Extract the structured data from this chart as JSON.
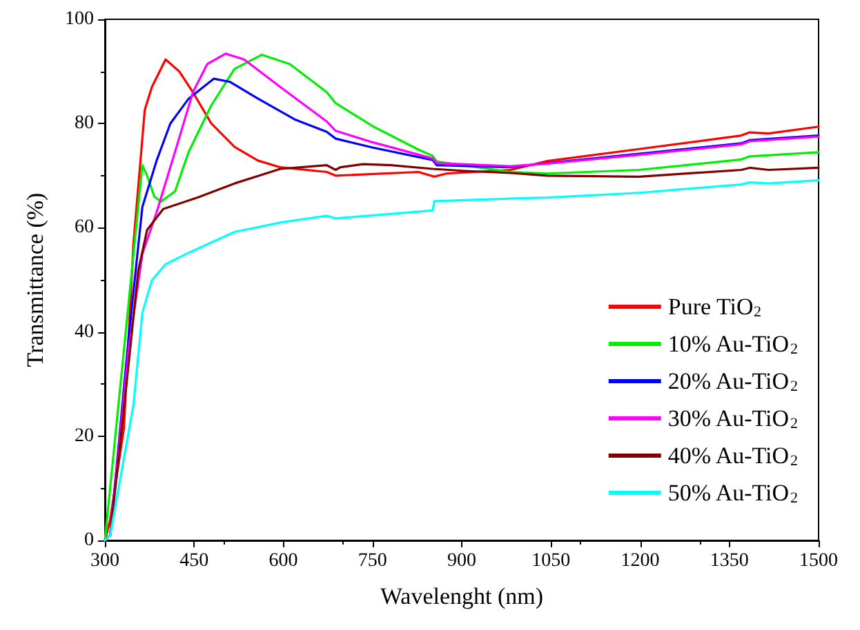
{
  "chart_data": {
    "type": "line",
    "xlabel": "Wavelenght (nm)",
    "ylabel": "Transmittance (%)",
    "xlim": [
      300,
      1500
    ],
    "xticks": [
      300,
      450,
      600,
      750,
      900,
      1050,
      1200,
      1350,
      1500
    ],
    "ylim": [
      0,
      100
    ],
    "yticks": [
      0,
      20,
      40,
      60,
      80,
      100
    ],
    "grid": false,
    "legend": "bottom right",
    "marker": "none",
    "line_style": "solid",
    "series": [
      {
        "name": "Pure TiO$_{2}$",
        "color": "#ff0000",
        "x": [
          300,
          309,
          332,
          348,
          367,
          379,
          402,
          425,
          448,
          479,
          518,
          557,
          595,
          673,
          688,
          827,
          854,
          874,
          982,
          1044,
          1198,
          1370,
          1384,
          1416,
          1500
        ],
        "values": [
          0,
          4,
          21.6,
          57,
          82.6,
          87,
          92.3,
          90,
          86,
          80,
          75.5,
          72.9,
          71.6,
          70.7,
          70,
          70.7,
          69.8,
          70.4,
          71.1,
          72.8,
          75.1,
          77.7,
          78.3,
          78.1,
          79.4
        ]
      },
      {
        "name": "10% Au-TiO$_{2}$",
        "color": "#00ee00",
        "x": [
          300,
          356,
          363,
          371,
          383,
          394,
          418,
          441,
          479,
          518,
          564,
          611,
          673,
          688,
          750,
          827,
          851,
          858,
          982,
          1044,
          1198,
          1370,
          1384,
          1500
        ],
        "values": [
          0,
          64,
          72,
          70,
          66,
          65,
          67,
          74.6,
          83.5,
          90.5,
          93.2,
          91.4,
          86,
          83.9,
          79.5,
          75,
          73.8,
          72.7,
          70.7,
          70.4,
          71.1,
          73.1,
          73.7,
          74.5
        ]
      },
      {
        "name": "20% Au-TiO$_{2}$",
        "color": "#0000ff",
        "x": [
          300,
          309,
          340,
          363,
          387,
          410,
          441,
          483,
          510,
          557,
          619,
          673,
          688,
          750,
          851,
          858,
          982,
          1044,
          1198,
          1370,
          1384,
          1500
        ],
        "values": [
          0,
          1,
          39,
          64,
          72.9,
          80,
          84.8,
          88.6,
          88,
          84.8,
          80.8,
          78.4,
          77.1,
          75.4,
          73,
          72,
          71.6,
          72.4,
          74.2,
          76.2,
          76.8,
          77.7
        ]
      },
      {
        "name": "30% Au-TiO$_{2}$",
        "color": "#ff00ff",
        "x": [
          300,
          309,
          340,
          363,
          387,
          418,
          448,
          472,
          503,
          534,
          595,
          673,
          688,
          750,
          851,
          858,
          982,
          1044,
          1198,
          1370,
          1384,
          1500
        ],
        "values": [
          0,
          1,
          36.7,
          55,
          63,
          74.6,
          86,
          91.4,
          93.4,
          92.3,
          87,
          80.4,
          78.6,
          76.4,
          73.3,
          72.4,
          71.8,
          72.3,
          74,
          76,
          76.6,
          77.5
        ]
      },
      {
        "name": "40% Au-TiO$_{2}$",
        "color": "#800000",
        "x": [
          300,
          309,
          340,
          356,
          371,
          398,
          456,
          518,
          595,
          673,
          688,
          696,
          734,
          781,
          851,
          905,
          982,
          1044,
          1198,
          1370,
          1384,
          1416,
          1500
        ],
        "values": [
          0,
          1,
          34,
          51.7,
          59.6,
          63.6,
          65.8,
          68.5,
          71.3,
          72,
          71.1,
          71.6,
          72.2,
          72,
          71.3,
          70.9,
          70.5,
          70,
          69.8,
          71.1,
          71.5,
          71.1,
          71.5
        ]
      },
      {
        "name": "50% Au-TiO$_{2}$",
        "color": "#00ffff",
        "x": [
          300,
          309,
          348,
          363,
          379,
          402,
          441,
          518,
          595,
          673,
          688,
          851,
          854,
          982,
          1044,
          1198,
          1370,
          1384,
          1416,
          1500
        ],
        "values": [
          0,
          1,
          26,
          43.7,
          49.9,
          53,
          55.2,
          59.2,
          61,
          62.3,
          61.8,
          63.3,
          65.1,
          65.6,
          65.8,
          66.7,
          68.3,
          68.7,
          68.5,
          69.1
        ]
      }
    ]
  }
}
